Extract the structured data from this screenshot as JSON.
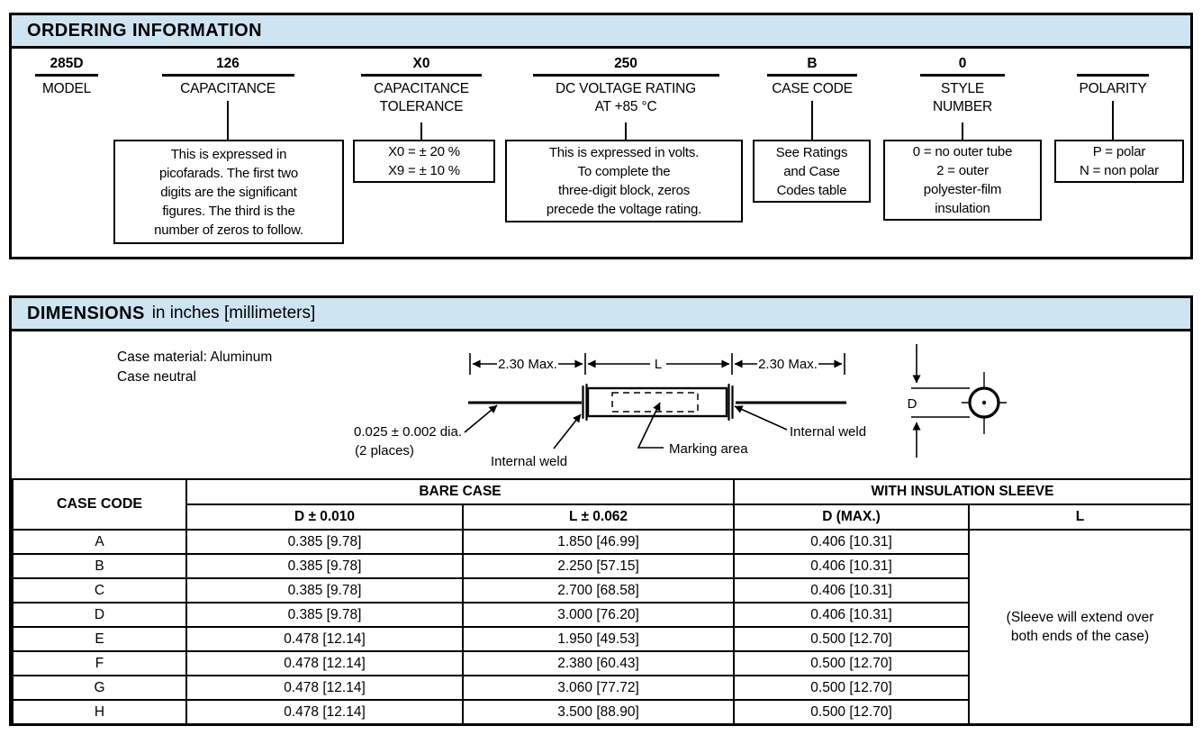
{
  "colors": {
    "accent": "#cfe4f2",
    "border": "#000000"
  },
  "ordering": {
    "title": "ORDERING INFORMATION",
    "columns": [
      {
        "code": "285D",
        "label": "MODEL"
      },
      {
        "code": "126",
        "label": "CAPACITANCE"
      },
      {
        "code": "X0",
        "label": "CAPACITANCE\nTOLERANCE"
      },
      {
        "code": "250",
        "label": "DC VOLTAGE RATING\nAT +85 °C"
      },
      {
        "code": "B",
        "label": "CASE CODE"
      },
      {
        "code": "0",
        "label": "STYLE\nNUMBER"
      },
      {
        "code": "",
        "label": "POLARITY"
      }
    ],
    "notes": {
      "capacitance": "This is expressed in\npicofarads. The first two\ndigits are the significant\nfigures. The third is the\nnumber of zeros to follow.",
      "tolerance": "X0 = ± 20 %\nX9 = ± 10 %",
      "voltage": "This is expressed in volts.\nTo complete the\nthree-digit block, zeros\nprecede the voltage rating.",
      "case_code": "See Ratings\nand Case\nCodes table",
      "style": "0 = no outer tube\n2 = outer\npolyester-film\ninsulation",
      "polarity": "P = polar\nN = non polar"
    }
  },
  "dimensions": {
    "title": "DIMENSIONS",
    "subtitle": "in inches [millimeters]",
    "case_note": "Case material: Aluminum\nCase neutral",
    "diagram": {
      "lead_dim_left": "2.30 Max.",
      "length_label": "L",
      "lead_dim_right": "2.30 Max.",
      "lead_dia": "0.025 ± 0.002 dia.",
      "lead_dia_places": "(2 places)",
      "internal_weld_left": "Internal weld",
      "internal_weld_right": "Internal weld",
      "marking_area": "Marking area",
      "diameter_label": "D"
    },
    "table": {
      "col_case_code": "CASE CODE",
      "group_bare_case": "BARE CASE",
      "group_sleeve": "WITH INSULATION SLEEVE",
      "col_d_bare": "D ± 0.010",
      "col_l_bare": "L ± 0.062",
      "col_d_sleeve": "D (MAX.)",
      "col_l_sleeve": "L",
      "sleeve_note": "(Sleeve will extend over\nboth ends of the case)",
      "rows": [
        {
          "case_code": "A",
          "d_bare": "0.385 [9.78]",
          "l_bare": "1.850 [46.99]",
          "d_sleeve": "0.406 [10.31]"
        },
        {
          "case_code": "B",
          "d_bare": "0.385 [9.78]",
          "l_bare": "2.250 [57.15]",
          "d_sleeve": "0.406 [10.31]"
        },
        {
          "case_code": "C",
          "d_bare": "0.385 [9.78]",
          "l_bare": "2.700 [68.58]",
          "d_sleeve": "0.406 [10.31]"
        },
        {
          "case_code": "D",
          "d_bare": "0.385 [9.78]",
          "l_bare": "3.000 [76.20]",
          "d_sleeve": "0.406 [10.31]"
        },
        {
          "case_code": "E",
          "d_bare": "0.478 [12.14]",
          "l_bare": "1.950 [49.53]",
          "d_sleeve": "0.500 [12.70]"
        },
        {
          "case_code": "F",
          "d_bare": "0.478 [12.14]",
          "l_bare": "2.380 [60.43]",
          "d_sleeve": "0.500 [12.70]"
        },
        {
          "case_code": "G",
          "d_bare": "0.478 [12.14]",
          "l_bare": "3.060 [77.72]",
          "d_sleeve": "0.500 [12.70]"
        },
        {
          "case_code": "H",
          "d_bare": "0.478 [12.14]",
          "l_bare": "3.500 [88.90]",
          "d_sleeve": "0.500 [12.70]"
        }
      ]
    }
  }
}
